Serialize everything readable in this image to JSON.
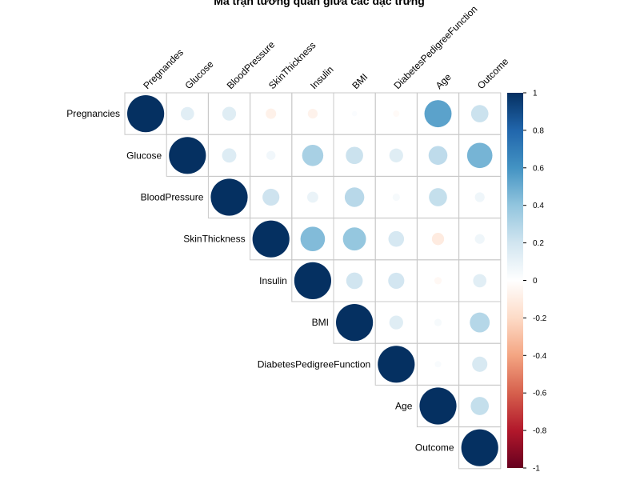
{
  "chart_data": {
    "type": "heatmap",
    "title": "Ma trận tương quan giữa các đặc trưng",
    "layout": "upper-triangle",
    "method": "circle",
    "variables": [
      "Pregnancies",
      "Glucose",
      "BloodPressure",
      "SkinThickness",
      "Insulin",
      "BMI",
      "DiabetesPedigreeFunction",
      "Age",
      "Outcome"
    ],
    "column_labels": [
      "Pregnandes",
      "Glucose",
      "BloodPressure",
      "SkinThickness",
      "Insulin",
      "BMI",
      "DiabetesPedigreeFunction",
      "Age",
      "Outcome"
    ],
    "matrix": [
      [
        1.0,
        0.13,
        0.14,
        -0.08,
        -0.07,
        0.02,
        -0.03,
        0.54,
        0.22
      ],
      [
        0.13,
        1.0,
        0.15,
        0.06,
        0.33,
        0.22,
        0.14,
        0.26,
        0.47
      ],
      [
        0.14,
        0.15,
        1.0,
        0.21,
        0.09,
        0.28,
        0.04,
        0.24,
        0.07
      ],
      [
        -0.08,
        0.06,
        0.21,
        1.0,
        0.44,
        0.39,
        0.18,
        -0.11,
        0.07
      ],
      [
        -0.07,
        0.33,
        0.09,
        0.44,
        1.0,
        0.2,
        0.19,
        -0.04,
        0.13
      ],
      [
        0.02,
        0.22,
        0.28,
        0.39,
        0.2,
        1.0,
        0.14,
        0.04,
        0.29
      ],
      [
        -0.03,
        0.14,
        0.04,
        0.18,
        0.19,
        0.14,
        1.0,
        0.03,
        0.17
      ],
      [
        0.54,
        0.26,
        0.24,
        -0.11,
        -0.04,
        0.04,
        0.03,
        1.0,
        0.24
      ],
      [
        0.22,
        0.47,
        0.07,
        0.07,
        0.13,
        0.29,
        0.17,
        0.24,
        1.0
      ]
    ],
    "color_scale": {
      "range": [
        -1,
        1
      ],
      "ticks": [
        "1",
        "0.8",
        "0.6",
        "0.4",
        "0.2",
        "0",
        "-0.2",
        "-0.4",
        "-0.6",
        "-0.8",
        "-1"
      ],
      "stops": [
        "#67001F",
        "#B2182B",
        "#D6604D",
        "#F4A582",
        "#FDDBC7",
        "#FFFFFF",
        "#D1E5F0",
        "#92C5DE",
        "#4393C3",
        "#2166AC",
        "#053061"
      ]
    },
    "legend": "right"
  }
}
